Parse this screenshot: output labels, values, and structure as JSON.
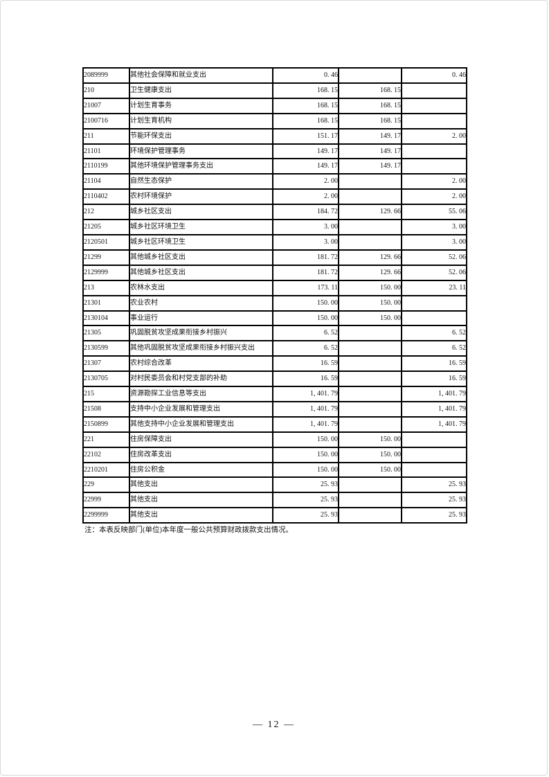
{
  "page": {
    "footnote": "注：本表反映部门(单位)本年度一般公共预算财政拨款支出情况。",
    "page_number": "— 12 —",
    "colors": {
      "text": "#111111",
      "table_border": "#000000",
      "page_edge": "#d8d8d8",
      "background": "#ffffff"
    }
  },
  "table": {
    "column_keys": [
      "code",
      "name",
      "total",
      "basic",
      "project"
    ],
    "rows": [
      {
        "code": "2089999",
        "name": "其他社会保障和就业支出",
        "total": "0. 46",
        "basic": "",
        "project": "0. 46"
      },
      {
        "code": "210",
        "name": "卫生健康支出",
        "total": "168. 15",
        "basic": "168. 15",
        "project": ""
      },
      {
        "code": "21007",
        "name": "计划生育事务",
        "total": "168. 15",
        "basic": "168. 15",
        "project": ""
      },
      {
        "code": "2100716",
        "name": "计划生育机构",
        "total": "168. 15",
        "basic": "168. 15",
        "project": ""
      },
      {
        "code": "211",
        "name": "节能环保支出",
        "total": "151. 17",
        "basic": "149. 17",
        "project": "2. 00"
      },
      {
        "code": "21101",
        "name": "环境保护管理事务",
        "total": "149. 17",
        "basic": "149. 17",
        "project": ""
      },
      {
        "code": "2110199",
        "name": "其他环境保护管理事务支出",
        "total": "149. 17",
        "basic": "149. 17",
        "project": ""
      },
      {
        "code": "21104",
        "name": "自然生态保护",
        "total": "2. 00",
        "basic": "",
        "project": "2. 00"
      },
      {
        "code": "2110402",
        "name": "农村环境保护",
        "total": "2. 00",
        "basic": "",
        "project": "2. 00"
      },
      {
        "code": "212",
        "name": "城乡社区支出",
        "total": "184. 72",
        "basic": "129. 66",
        "project": "55. 06"
      },
      {
        "code": "21205",
        "name": "城乡社区环境卫生",
        "total": "3. 00",
        "basic": "",
        "project": "3. 00"
      },
      {
        "code": "2120501",
        "name": "城乡社区环境卫生",
        "total": "3. 00",
        "basic": "",
        "project": "3. 00"
      },
      {
        "code": "21299",
        "name": "其他城乡社区支出",
        "total": "181. 72",
        "basic": "129. 66",
        "project": "52. 06"
      },
      {
        "code": "2129999",
        "name": "其他城乡社区支出",
        "total": "181. 72",
        "basic": "129. 66",
        "project": "52. 06"
      },
      {
        "code": "213",
        "name": "农林水支出",
        "total": "173. 11",
        "basic": "150. 00",
        "project": "23. 11"
      },
      {
        "code": "21301",
        "name": "农业农村",
        "total": "150. 00",
        "basic": "150. 00",
        "project": ""
      },
      {
        "code": "2130104",
        "name": "事业运行",
        "total": "150. 00",
        "basic": "150. 00",
        "project": ""
      },
      {
        "code": "21305",
        "name": "巩固脱贫攻坚成果衔接乡村振兴",
        "total": "6. 52",
        "basic": "",
        "project": "6. 52"
      },
      {
        "code": "2130599",
        "name": "其他巩固脱贫攻坚成果衔接乡村振兴支出",
        "total": "6. 52",
        "basic": "",
        "project": "6. 52"
      },
      {
        "code": "21307",
        "name": "农村综合改革",
        "total": "16. 59",
        "basic": "",
        "project": "16. 59"
      },
      {
        "code": "2130705",
        "name": "对村民委员会和村党支部的补助",
        "total": "16. 59",
        "basic": "",
        "project": "16. 59"
      },
      {
        "code": "215",
        "name": "资源勘探工业信息等支出",
        "total": "1, 401. 79",
        "basic": "",
        "project": "1, 401. 79"
      },
      {
        "code": "21508",
        "name": "支持中小企业发展和管理支出",
        "total": "1, 401. 79",
        "basic": "",
        "project": "1, 401. 79"
      },
      {
        "code": "2150899",
        "name": "其他支持中小企业发展和管理支出",
        "total": "1, 401. 79",
        "basic": "",
        "project": "1, 401. 79"
      },
      {
        "code": "221",
        "name": "住房保障支出",
        "total": "150. 00",
        "basic": "150. 00",
        "project": ""
      },
      {
        "code": "22102",
        "name": "住房改革支出",
        "total": "150. 00",
        "basic": "150. 00",
        "project": ""
      },
      {
        "code": "2210201",
        "name": "住房公积金",
        "total": "150. 00",
        "basic": "150. 00",
        "project": ""
      },
      {
        "code": "229",
        "name": "其他支出",
        "total": "25. 93",
        "basic": "",
        "project": "25. 93"
      },
      {
        "code": "22999",
        "name": "其他支出",
        "total": "25. 93",
        "basic": "",
        "project": "25. 93"
      },
      {
        "code": "2299999",
        "name": "其他支出",
        "total": "25. 93",
        "basic": "",
        "project": "25. 93"
      }
    ]
  }
}
